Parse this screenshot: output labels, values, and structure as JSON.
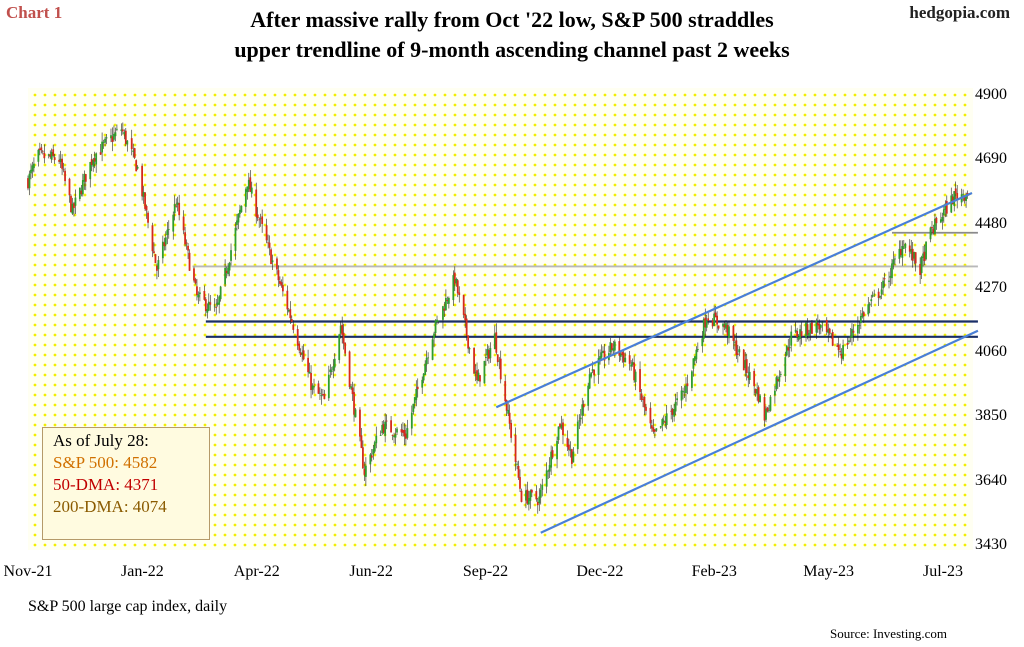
{
  "header": {
    "chart_label": "Chart 1",
    "site": "hedgopia.com",
    "title_line1": "After massive rally from Oct '22 low, S&P 500 straddles",
    "title_line2": "upper trendline of 9-month ascending channel past 2 weeks"
  },
  "footer": {
    "subtitle": "S&P 500 large cap index, daily",
    "source": "Source: Investing.com"
  },
  "infobox": {
    "heading": "As of July 28:",
    "sp500": "S&P 500: 4582",
    "dma50": "50-DMA: 4371",
    "dma200": "200-DMA: 4074"
  },
  "colors": {
    "background_dots": "#f5f200",
    "candle_up": "#2e9c2e",
    "candle_down": "#d42a1e",
    "trendline": "#4a7fd6",
    "support_line": "#1a2f66",
    "dma_line": "#b8b8b8",
    "infobox_sp500": "#d07000",
    "infobox_50dma": "#c00000",
    "infobox_200dma": "#8a5a00"
  },
  "chart_data": {
    "type": "candlestick",
    "x_tick_labels": [
      "Nov-21",
      "Jan-22",
      "Apr-22",
      "Jun-22",
      "Sep-22",
      "Dec-22",
      "Feb-23",
      "May-23",
      "Jul-23"
    ],
    "y_tick_labels": [
      "4900",
      "4690",
      "4480",
      "4270",
      "4060",
      "3850",
      "3640",
      "3430"
    ],
    "ylim": [
      3430,
      4900
    ],
    "x_date_range": [
      "2021-11-01",
      "2023-07-31"
    ],
    "close_path": [
      [
        "2021-11-01",
        4620
      ],
      [
        "2021-11-08",
        4700
      ],
      [
        "2021-11-22",
        4690
      ],
      [
        "2021-12-01",
        4520
      ],
      [
        "2021-12-15",
        4700
      ],
      [
        "2022-01-03",
        4790
      ],
      [
        "2022-01-14",
        4660
      ],
      [
        "2022-01-27",
        4330
      ],
      [
        "2022-02-09",
        4550
      ],
      [
        "2022-02-23",
        4240
      ],
      [
        "2022-03-08",
        4190
      ],
      [
        "2022-03-29",
        4620
      ],
      [
        "2022-04-12",
        4400
      ],
      [
        "2022-04-29",
        4150
      ],
      [
        "2022-05-12",
        3940
      ],
      [
        "2022-05-20",
        3900
      ],
      [
        "2022-05-31",
        4150
      ],
      [
        "2022-06-16",
        3670
      ],
      [
        "2022-06-28",
        3820
      ],
      [
        "2022-07-14",
        3790
      ],
      [
        "2022-08-01",
        4120
      ],
      [
        "2022-08-16",
        4300
      ],
      [
        "2022-08-31",
        3960
      ],
      [
        "2022-09-12",
        4110
      ],
      [
        "2022-09-30",
        3590
      ],
      [
        "2022-10-12",
        3580
      ],
      [
        "2022-10-26",
        3830
      ],
      [
        "2022-11-03",
        3720
      ],
      [
        "2022-11-15",
        3990
      ],
      [
        "2022-12-01",
        4080
      ],
      [
        "2022-12-13",
        4020
      ],
      [
        "2022-12-28",
        3780
      ],
      [
        "2023-01-18",
        3930
      ],
      [
        "2023-02-02",
        4180
      ],
      [
        "2023-02-15",
        4140
      ],
      [
        "2023-03-09",
        3920
      ],
      [
        "2023-03-13",
        3850
      ],
      [
        "2023-03-31",
        4110
      ],
      [
        "2023-04-18",
        4150
      ],
      [
        "2023-05-04",
        4060
      ],
      [
        "2023-05-19",
        4190
      ],
      [
        "2023-06-02",
        4280
      ],
      [
        "2023-06-15",
        4420
      ],
      [
        "2023-06-26",
        4330
      ],
      [
        "2023-07-03",
        4450
      ],
      [
        "2023-07-19",
        4570
      ],
      [
        "2023-07-28",
        4582
      ]
    ],
    "trendlines": [
      {
        "name": "upper-channel",
        "from": [
          "2022-09-13",
          3880
        ],
        "to": [
          "2023-07-31",
          4580
        ]
      },
      {
        "name": "lower-channel",
        "from": [
          "2022-10-13",
          3470
        ],
        "to": [
          "2023-08-04",
          4130
        ]
      }
    ],
    "horizontal_lines": [
      {
        "name": "support-upper",
        "value": 4160,
        "from": "2022-03-01",
        "to": "2023-08-04",
        "kind": "support"
      },
      {
        "name": "support-lower",
        "value": 4110,
        "from": "2022-03-01",
        "to": "2023-08-04",
        "kind": "support"
      },
      {
        "name": "dma-200-line",
        "value": 4340,
        "from": "2022-02-20",
        "to": "2023-08-04",
        "kind": "dma"
      },
      {
        "name": "dma-50-line",
        "value": 4450,
        "from": "2023-06-07",
        "to": "2023-08-04",
        "kind": "dma"
      }
    ]
  }
}
